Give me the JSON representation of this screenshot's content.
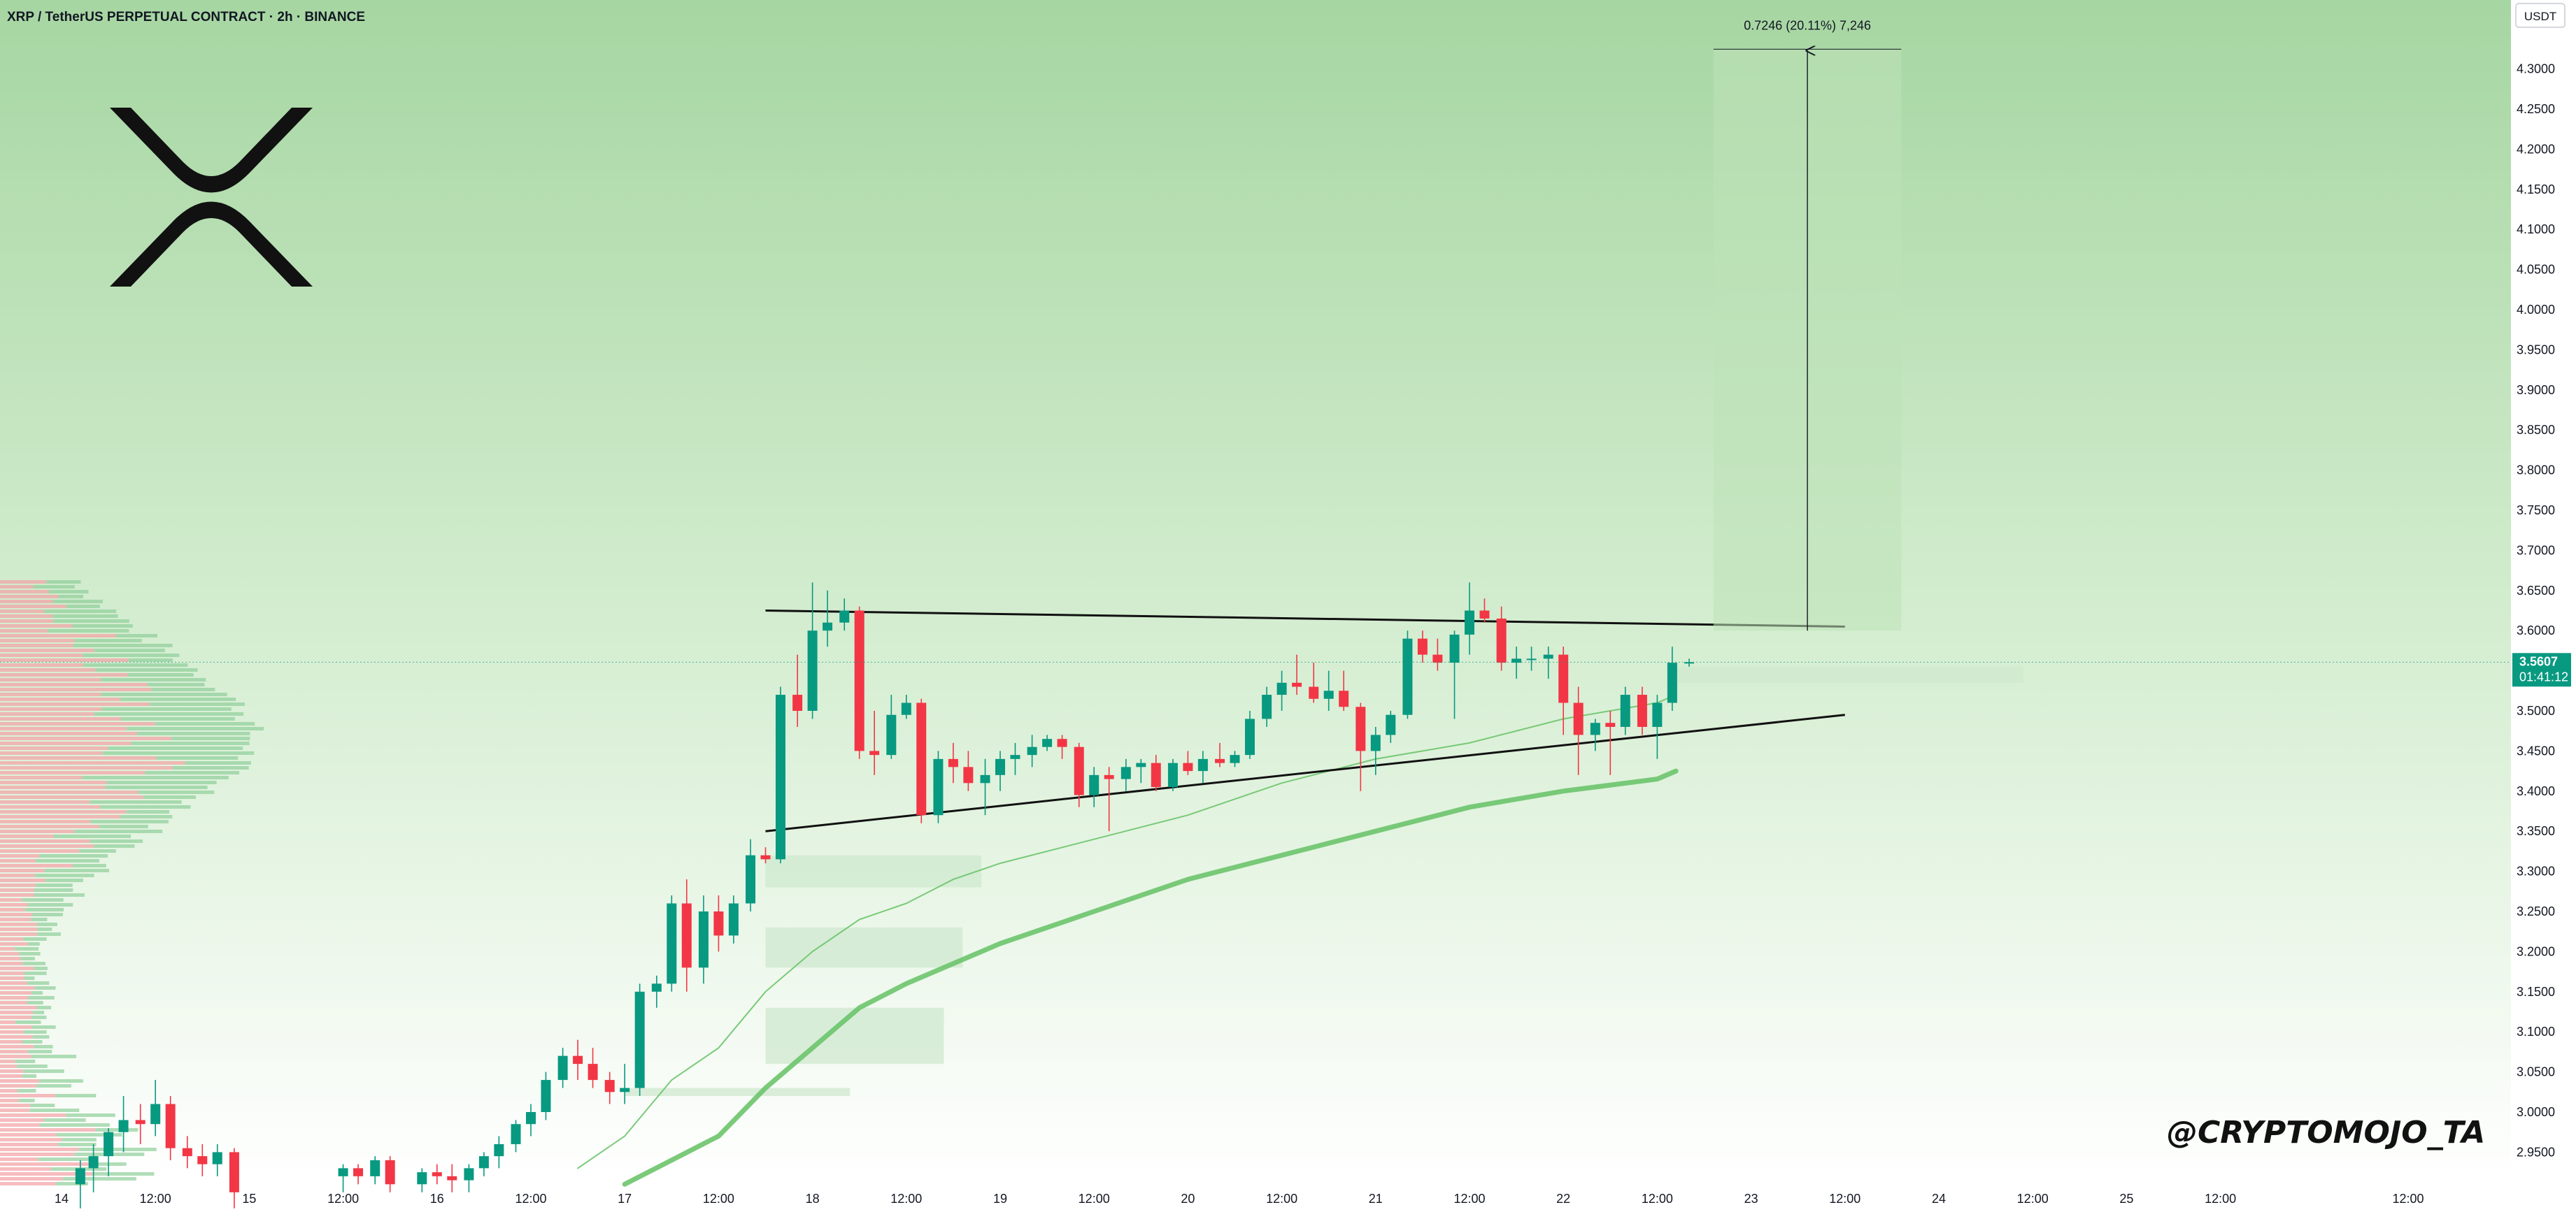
{
  "header": {
    "title": "XRP / TetherUS PERPETUAL CONTRACT · 2h · BINANCE"
  },
  "watermark": "@CRYPTOMOJO_TA",
  "logo_icon": "xrp-logo-icon",
  "currency_unit": "USDT",
  "current_price": {
    "value": "3.5607",
    "countdown": "01:41:12"
  },
  "measure_label": "0.7246 (20.11%) 7,246",
  "colors": {
    "up": "#089981",
    "down": "#f23645",
    "ma": "#6cc46c",
    "zone": "#cfe8cf",
    "bg_top": "#a8d8a4",
    "bg_bottom": "#ffffff"
  },
  "chart_data": {
    "type": "candlestick",
    "title": "XRP / TetherUS PERPETUAL CONTRACT · 2h · BINANCE",
    "y_axis": {
      "range": [
        2.92,
        4.36
      ],
      "ticks": [
        "2.9500",
        "3.0000",
        "3.0500",
        "3.1000",
        "3.1500",
        "3.2000",
        "3.2500",
        "3.3000",
        "3.3500",
        "3.4000",
        "3.4500",
        "3.5000",
        "3.5500",
        "3.6000",
        "3.6500",
        "3.7000",
        "3.7500",
        "3.8000",
        "3.8500",
        "3.9000",
        "3.9500",
        "4.0000",
        "4.0500",
        "4.1000",
        "4.1500",
        "4.2000",
        "4.2500",
        "4.3000"
      ]
    },
    "x_axis": {
      "range_days": [
        13.78,
        26.9
      ],
      "ticks": [
        {
          "label": "14",
          "t": 14.0
        },
        {
          "label": "12:00",
          "t": 14.5
        },
        {
          "label": "15",
          "t": 15.0
        },
        {
          "label": "12:00",
          "t": 15.5
        },
        {
          "label": "16",
          "t": 16.0
        },
        {
          "label": "12:00",
          "t": 16.5
        },
        {
          "label": "17",
          "t": 17.0
        },
        {
          "label": "12:00",
          "t": 17.5
        },
        {
          "label": "18",
          "t": 18.0
        },
        {
          "label": "12:00",
          "t": 18.5
        },
        {
          "label": "19",
          "t": 19.0
        },
        {
          "label": "12:00",
          "t": 19.5
        },
        {
          "label": "20",
          "t": 20.0
        },
        {
          "label": "12:00",
          "t": 20.5
        },
        {
          "label": "21",
          "t": 21.0
        },
        {
          "label": "12:00",
          "t": 21.5
        },
        {
          "label": "22",
          "t": 22.0
        },
        {
          "label": "12:00",
          "t": 22.5
        },
        {
          "label": "23",
          "t": 23.0
        },
        {
          "label": "12:00",
          "t": 23.5
        },
        {
          "label": "24",
          "t": 24.0
        },
        {
          "label": "12:00",
          "t": 24.5
        },
        {
          "label": "25",
          "t": 25.0
        },
        {
          "label": "12:00",
          "t": 25.5
        },
        {
          "label": "12:00",
          "t": 26.5
        }
      ]
    },
    "candles": [
      {
        "t": 14.1,
        "o": 2.91,
        "h": 2.94,
        "l": 2.88,
        "c": 2.93
      },
      {
        "t": 14.17,
        "o": 2.93,
        "h": 2.96,
        "l": 2.9,
        "c": 2.945
      },
      {
        "t": 14.25,
        "o": 2.945,
        "h": 2.98,
        "l": 2.92,
        "c": 2.975
      },
      {
        "t": 14.33,
        "o": 2.975,
        "h": 3.02,
        "l": 2.95,
        "c": 2.99
      },
      {
        "t": 14.42,
        "o": 2.99,
        "h": 3.01,
        "l": 2.96,
        "c": 2.985
      },
      {
        "t": 14.5,
        "o": 2.985,
        "h": 3.04,
        "l": 2.97,
        "c": 3.01
      },
      {
        "t": 14.58,
        "o": 3.01,
        "h": 3.02,
        "l": 2.94,
        "c": 2.955
      },
      {
        "t": 14.67,
        "o": 2.955,
        "h": 2.97,
        "l": 2.93,
        "c": 2.945
      },
      {
        "t": 14.75,
        "o": 2.945,
        "h": 2.96,
        "l": 2.92,
        "c": 2.935
      },
      {
        "t": 14.83,
        "o": 2.935,
        "h": 2.96,
        "l": 2.92,
        "c": 2.95
      },
      {
        "t": 14.92,
        "o": 2.95,
        "h": 2.955,
        "l": 2.88,
        "c": 2.9
      },
      {
        "t": 15.5,
        "o": 2.92,
        "h": 2.935,
        "l": 2.9,
        "c": 2.93
      },
      {
        "t": 15.58,
        "o": 2.93,
        "h": 2.935,
        "l": 2.91,
        "c": 2.92
      },
      {
        "t": 15.67,
        "o": 2.92,
        "h": 2.945,
        "l": 2.91,
        "c": 2.94
      },
      {
        "t": 15.75,
        "o": 2.94,
        "h": 2.945,
        "l": 2.9,
        "c": 2.91
      },
      {
        "t": 15.92,
        "o": 2.91,
        "h": 2.93,
        "l": 2.9,
        "c": 2.925
      },
      {
        "t": 16.0,
        "o": 2.925,
        "h": 2.935,
        "l": 2.91,
        "c": 2.92
      },
      {
        "t": 16.08,
        "o": 2.92,
        "h": 2.935,
        "l": 2.9,
        "c": 2.915
      },
      {
        "t": 16.17,
        "o": 2.915,
        "h": 2.935,
        "l": 2.9,
        "c": 2.93
      },
      {
        "t": 16.25,
        "o": 2.93,
        "h": 2.95,
        "l": 2.92,
        "c": 2.945
      },
      {
        "t": 16.33,
        "o": 2.945,
        "h": 2.97,
        "l": 2.93,
        "c": 2.96
      },
      {
        "t": 16.42,
        "o": 2.96,
        "h": 2.99,
        "l": 2.95,
        "c": 2.985
      },
      {
        "t": 16.5,
        "o": 2.985,
        "h": 3.01,
        "l": 2.97,
        "c": 3.0
      },
      {
        "t": 16.58,
        "o": 3.0,
        "h": 3.05,
        "l": 2.99,
        "c": 3.04
      },
      {
        "t": 16.67,
        "o": 3.04,
        "h": 3.08,
        "l": 3.03,
        "c": 3.07
      },
      {
        "t": 16.75,
        "o": 3.07,
        "h": 3.09,
        "l": 3.04,
        "c": 3.06
      },
      {
        "t": 16.83,
        "o": 3.06,
        "h": 3.08,
        "l": 3.03,
        "c": 3.04
      },
      {
        "t": 16.92,
        "o": 3.04,
        "h": 3.05,
        "l": 3.01,
        "c": 3.025
      },
      {
        "t": 17.0,
        "o": 3.025,
        "h": 3.06,
        "l": 3.01,
        "c": 3.03
      },
      {
        "t": 17.08,
        "o": 3.03,
        "h": 3.16,
        "l": 3.02,
        "c": 3.15
      },
      {
        "t": 17.17,
        "o": 3.15,
        "h": 3.17,
        "l": 3.13,
        "c": 3.16
      },
      {
        "t": 17.25,
        "o": 3.16,
        "h": 3.27,
        "l": 3.15,
        "c": 3.26
      },
      {
        "t": 17.33,
        "o": 3.26,
        "h": 3.29,
        "l": 3.15,
        "c": 3.18
      },
      {
        "t": 17.42,
        "o": 3.18,
        "h": 3.27,
        "l": 3.16,
        "c": 3.25
      },
      {
        "t": 17.5,
        "o": 3.25,
        "h": 3.27,
        "l": 3.2,
        "c": 3.22
      },
      {
        "t": 17.58,
        "o": 3.22,
        "h": 3.27,
        "l": 3.21,
        "c": 3.26
      },
      {
        "t": 17.67,
        "o": 3.26,
        "h": 3.34,
        "l": 3.25,
        "c": 3.32
      },
      {
        "t": 17.75,
        "o": 3.32,
        "h": 3.33,
        "l": 3.31,
        "c": 3.315
      },
      {
        "t": 17.83,
        "o": 3.315,
        "h": 3.53,
        "l": 3.31,
        "c": 3.52
      },
      {
        "t": 17.92,
        "o": 3.52,
        "h": 3.57,
        "l": 3.48,
        "c": 3.5
      },
      {
        "t": 18.0,
        "o": 3.5,
        "h": 3.66,
        "l": 3.49,
        "c": 3.6
      },
      {
        "t": 18.08,
        "o": 3.6,
        "h": 3.65,
        "l": 3.58,
        "c": 3.61
      },
      {
        "t": 18.17,
        "o": 3.61,
        "h": 3.64,
        "l": 3.6,
        "c": 3.625
      },
      {
        "t": 18.25,
        "o": 3.625,
        "h": 3.63,
        "l": 3.44,
        "c": 3.45
      },
      {
        "t": 18.33,
        "o": 3.45,
        "h": 3.5,
        "l": 3.42,
        "c": 3.445
      },
      {
        "t": 18.42,
        "o": 3.445,
        "h": 3.52,
        "l": 3.44,
        "c": 3.495
      },
      {
        "t": 18.5,
        "o": 3.495,
        "h": 3.52,
        "l": 3.49,
        "c": 3.51
      },
      {
        "t": 18.58,
        "o": 3.51,
        "h": 3.515,
        "l": 3.36,
        "c": 3.37
      },
      {
        "t": 18.67,
        "o": 3.37,
        "h": 3.45,
        "l": 3.36,
        "c": 3.44
      },
      {
        "t": 18.75,
        "o": 3.44,
        "h": 3.46,
        "l": 3.41,
        "c": 3.43
      },
      {
        "t": 18.83,
        "o": 3.43,
        "h": 3.45,
        "l": 3.4,
        "c": 3.41
      },
      {
        "t": 18.92,
        "o": 3.41,
        "h": 3.44,
        "l": 3.37,
        "c": 3.42
      },
      {
        "t": 19.0,
        "o": 3.42,
        "h": 3.45,
        "l": 3.4,
        "c": 3.44
      },
      {
        "t": 19.08,
        "o": 3.44,
        "h": 3.46,
        "l": 3.42,
        "c": 3.445
      },
      {
        "t": 19.17,
        "o": 3.445,
        "h": 3.47,
        "l": 3.43,
        "c": 3.455
      },
      {
        "t": 19.25,
        "o": 3.455,
        "h": 3.47,
        "l": 3.45,
        "c": 3.465
      },
      {
        "t": 19.33,
        "o": 3.465,
        "h": 3.47,
        "l": 3.44,
        "c": 3.455
      },
      {
        "t": 19.42,
        "o": 3.455,
        "h": 3.46,
        "l": 3.38,
        "c": 3.395
      },
      {
        "t": 19.5,
        "o": 3.395,
        "h": 3.43,
        "l": 3.38,
        "c": 3.42
      },
      {
        "t": 19.58,
        "o": 3.42,
        "h": 3.43,
        "l": 3.35,
        "c": 3.415
      },
      {
        "t": 19.67,
        "o": 3.415,
        "h": 3.44,
        "l": 3.4,
        "c": 3.43
      },
      {
        "t": 19.75,
        "o": 3.43,
        "h": 3.44,
        "l": 3.41,
        "c": 3.435
      },
      {
        "t": 19.83,
        "o": 3.435,
        "h": 3.445,
        "l": 3.4,
        "c": 3.405
      },
      {
        "t": 19.92,
        "o": 3.405,
        "h": 3.44,
        "l": 3.4,
        "c": 3.435
      },
      {
        "t": 20.0,
        "o": 3.435,
        "h": 3.45,
        "l": 3.42,
        "c": 3.425
      },
      {
        "t": 20.08,
        "o": 3.425,
        "h": 3.45,
        "l": 3.41,
        "c": 3.44
      },
      {
        "t": 20.17,
        "o": 3.44,
        "h": 3.46,
        "l": 3.43,
        "c": 3.435
      },
      {
        "t": 20.25,
        "o": 3.435,
        "h": 3.45,
        "l": 3.43,
        "c": 3.445
      },
      {
        "t": 20.33,
        "o": 3.445,
        "h": 3.5,
        "l": 3.44,
        "c": 3.49
      },
      {
        "t": 20.42,
        "o": 3.49,
        "h": 3.53,
        "l": 3.48,
        "c": 3.52
      },
      {
        "t": 20.5,
        "o": 3.52,
        "h": 3.55,
        "l": 3.5,
        "c": 3.535
      },
      {
        "t": 20.58,
        "o": 3.535,
        "h": 3.57,
        "l": 3.52,
        "c": 3.53
      },
      {
        "t": 20.67,
        "o": 3.53,
        "h": 3.56,
        "l": 3.51,
        "c": 3.515
      },
      {
        "t": 20.75,
        "o": 3.515,
        "h": 3.55,
        "l": 3.5,
        "c": 3.525
      },
      {
        "t": 20.83,
        "o": 3.525,
        "h": 3.55,
        "l": 3.5,
        "c": 3.505
      },
      {
        "t": 20.92,
        "o": 3.505,
        "h": 3.51,
        "l": 3.4,
        "c": 3.45
      },
      {
        "t": 21.0,
        "o": 3.45,
        "h": 3.48,
        "l": 3.42,
        "c": 3.47
      },
      {
        "t": 21.08,
        "o": 3.47,
        "h": 3.5,
        "l": 3.46,
        "c": 3.495
      },
      {
        "t": 21.17,
        "o": 3.495,
        "h": 3.6,
        "l": 3.49,
        "c": 3.59
      },
      {
        "t": 21.25,
        "o": 3.59,
        "h": 3.6,
        "l": 3.56,
        "c": 3.57
      },
      {
        "t": 21.33,
        "o": 3.57,
        "h": 3.59,
        "l": 3.55,
        "c": 3.56
      },
      {
        "t": 21.42,
        "o": 3.56,
        "h": 3.6,
        "l": 3.49,
        "c": 3.595
      },
      {
        "t": 21.5,
        "o": 3.595,
        "h": 3.66,
        "l": 3.57,
        "c": 3.625
      },
      {
        "t": 21.58,
        "o": 3.625,
        "h": 3.64,
        "l": 3.61,
        "c": 3.615
      },
      {
        "t": 21.67,
        "o": 3.615,
        "h": 3.63,
        "l": 3.55,
        "c": 3.56
      },
      {
        "t": 21.75,
        "o": 3.56,
        "h": 3.58,
        "l": 3.54,
        "c": 3.565
      },
      {
        "t": 21.83,
        "o": 3.565,
        "h": 3.58,
        "l": 3.55,
        "c": 3.565
      },
      {
        "t": 21.92,
        "o": 3.565,
        "h": 3.58,
        "l": 3.54,
        "c": 3.57
      },
      {
        "t": 22.0,
        "o": 3.57,
        "h": 3.58,
        "l": 3.47,
        "c": 3.51
      },
      {
        "t": 22.08,
        "o": 3.51,
        "h": 3.53,
        "l": 3.42,
        "c": 3.47
      },
      {
        "t": 22.17,
        "o": 3.47,
        "h": 3.49,
        "l": 3.45,
        "c": 3.485
      },
      {
        "t": 22.25,
        "o": 3.485,
        "h": 3.5,
        "l": 3.42,
        "c": 3.48
      },
      {
        "t": 22.33,
        "o": 3.48,
        "h": 3.53,
        "l": 3.47,
        "c": 3.52
      },
      {
        "t": 22.42,
        "o": 3.52,
        "h": 3.53,
        "l": 3.47,
        "c": 3.48
      },
      {
        "t": 22.5,
        "o": 3.48,
        "h": 3.52,
        "l": 3.44,
        "c": 3.51
      },
      {
        "t": 22.58,
        "o": 3.51,
        "h": 3.58,
        "l": 3.5,
        "c": 3.56
      },
      {
        "t": 22.67,
        "o": 3.56,
        "h": 3.565,
        "l": 3.555,
        "c": 3.5607
      }
    ],
    "moving_averages": [
      {
        "name": "",
        "width": 2,
        "points": [
          [
            16.75,
            2.93
          ],
          [
            17.0,
            2.97
          ],
          [
            17.25,
            3.04
          ],
          [
            17.5,
            3.08
          ],
          [
            17.75,
            3.15
          ],
          [
            18.0,
            3.2
          ],
          [
            18.25,
            3.24
          ],
          [
            18.5,
            3.26
          ],
          [
            18.75,
            3.29
          ],
          [
            19.0,
            3.31
          ],
          [
            19.5,
            3.34
          ],
          [
            20.0,
            3.37
          ],
          [
            20.5,
            3.41
          ],
          [
            21.0,
            3.44
          ],
          [
            21.5,
            3.46
          ],
          [
            22.0,
            3.49
          ],
          [
            22.5,
            3.51
          ],
          [
            22.6,
            3.52
          ]
        ]
      },
      {
        "name": "",
        "width": 7,
        "points": [
          [
            17.0,
            2.91
          ],
          [
            17.5,
            2.97
          ],
          [
            17.75,
            3.03
          ],
          [
            18.0,
            3.08
          ],
          [
            18.25,
            3.13
          ],
          [
            18.5,
            3.16
          ],
          [
            19.0,
            3.21
          ],
          [
            19.5,
            3.25
          ],
          [
            20.0,
            3.29
          ],
          [
            20.5,
            3.32
          ],
          [
            21.0,
            3.35
          ],
          [
            21.5,
            3.38
          ],
          [
            21.75,
            3.39
          ],
          [
            22.0,
            3.4
          ],
          [
            22.5,
            3.415
          ],
          [
            22.6,
            3.425
          ]
        ]
      }
    ],
    "trendlines": [
      {
        "name": "resistance",
        "p1": [
          17.75,
          3.625
        ],
        "p2": [
          23.5,
          3.605
        ]
      },
      {
        "name": "support",
        "p1": [
          17.75,
          3.35
        ],
        "p2": [
          23.5,
          3.495
        ]
      }
    ],
    "zones": [
      {
        "t1": 17.75,
        "t2": 18.9,
        "y1": 3.28,
        "y2": 3.32
      },
      {
        "t1": 17.75,
        "t2": 18.8,
        "y1": 3.18,
        "y2": 3.23
      },
      {
        "t1": 17.75,
        "t2": 18.7,
        "y1": 3.06,
        "y2": 3.13
      },
      {
        "t1": 17.0,
        "t2": 18.2,
        "y1": 3.02,
        "y2": 3.03
      },
      {
        "t1": 22.6,
        "t2": 24.45,
        "y1": 3.535,
        "y2": 3.555
      }
    ],
    "measure": {
      "t1": 22.8,
      "t2": 23.8,
      "from": 3.6,
      "to": 4.3246
    },
    "volume_profile_note": "horizontal volume profile histogram on left edge"
  }
}
